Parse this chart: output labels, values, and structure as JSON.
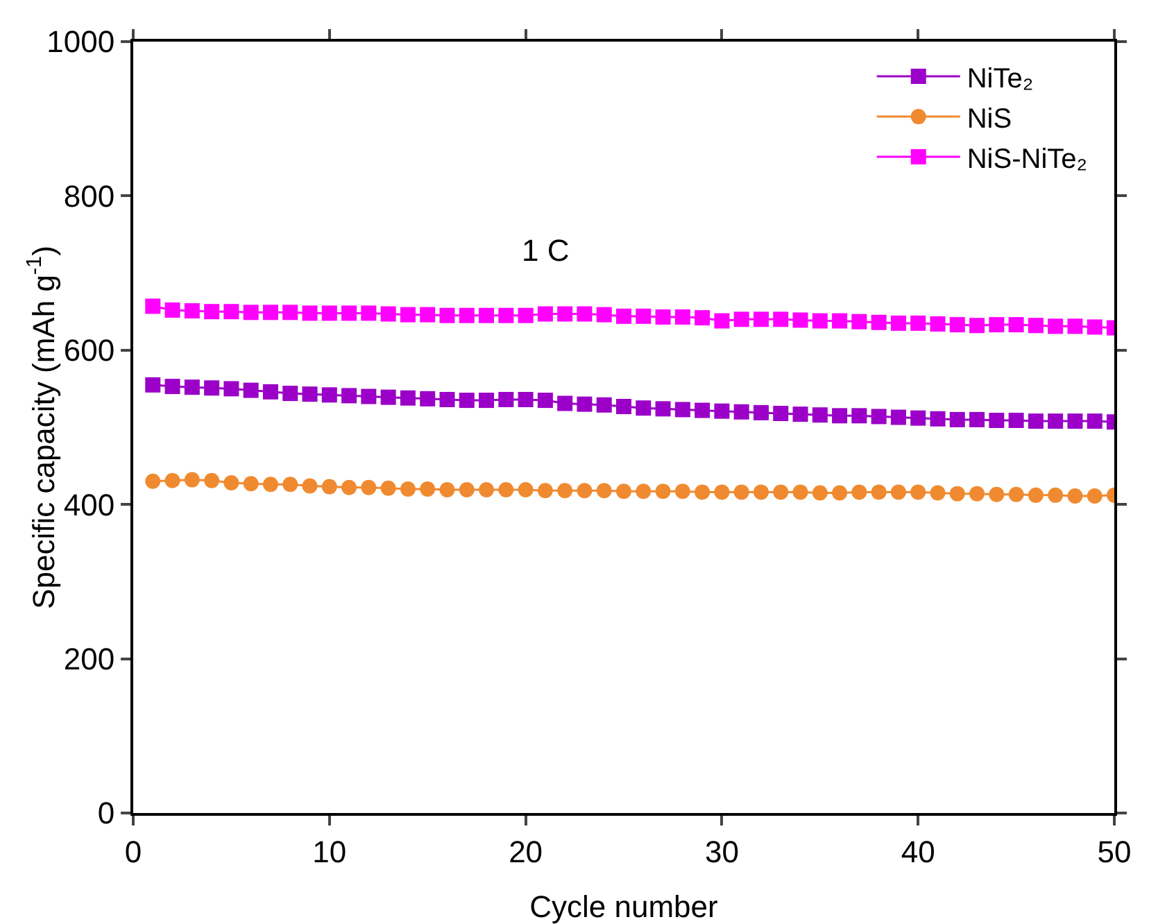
{
  "chart_data": {
    "type": "line",
    "xlabel": "Cycle number",
    "ylabel": "Specific capacity (mAh g$^{-1}$)",
    "annotations": [
      "1 C"
    ],
    "x": [
      1,
      2,
      3,
      4,
      5,
      6,
      7,
      8,
      9,
      10,
      11,
      12,
      13,
      14,
      15,
      16,
      17,
      18,
      19,
      20,
      21,
      22,
      23,
      24,
      25,
      26,
      27,
      28,
      29,
      30,
      31,
      32,
      33,
      34,
      35,
      36,
      37,
      38,
      39,
      40,
      41,
      42,
      43,
      44,
      45,
      46,
      47,
      48,
      49,
      50
    ],
    "series": [
      {
        "name": "NiTe₂",
        "color": "#9b00c8",
        "marker": "square",
        "values": [
          555,
          553,
          552,
          551,
          550,
          548,
          546,
          544,
          543,
          542,
          541,
          540,
          539,
          538,
          537,
          536,
          535,
          535,
          536,
          536,
          535,
          531,
          530,
          529,
          527,
          525,
          524,
          523,
          522,
          521,
          520,
          519,
          518,
          517,
          516,
          515,
          515,
          514,
          513,
          512,
          511,
          510,
          510,
          509,
          509,
          508,
          508,
          508,
          508,
          507
        ]
      },
      {
        "name": "NiS",
        "color": "#f08a30",
        "marker": "circle",
        "values": [
          430,
          431,
          432,
          431,
          428,
          427,
          426,
          426,
          424,
          423,
          422,
          422,
          421,
          420,
          420,
          419,
          419,
          419,
          419,
          419,
          418,
          418,
          418,
          418,
          417,
          417,
          417,
          417,
          416,
          416,
          416,
          416,
          416,
          416,
          415,
          415,
          416,
          416,
          416,
          416,
          415,
          414,
          414,
          413,
          413,
          412,
          412,
          411,
          411,
          412
        ]
      },
      {
        "name": "NiS-NiTe₂",
        "color": "#ff00ff",
        "marker": "square",
        "values": [
          657,
          652,
          651,
          650,
          650,
          649,
          649,
          649,
          648,
          648,
          648,
          648,
          647,
          646,
          646,
          645,
          645,
          645,
          645,
          645,
          647,
          647,
          647,
          646,
          644,
          644,
          643,
          643,
          642,
          638,
          640,
          640,
          640,
          639,
          638,
          638,
          637,
          636,
          635,
          635,
          634,
          633,
          632,
          633,
          633,
          632,
          631,
          631,
          630,
          629
        ]
      }
    ],
    "xlim": [
      0,
      50
    ],
    "xticks": [
      0,
      10,
      20,
      30,
      40,
      50
    ],
    "ylim": [
      0,
      1000
    ],
    "yticks": [
      0,
      200,
      400,
      600,
      800,
      1000
    ],
    "grid": false,
    "legend": "top right",
    "line_style": "solid"
  }
}
